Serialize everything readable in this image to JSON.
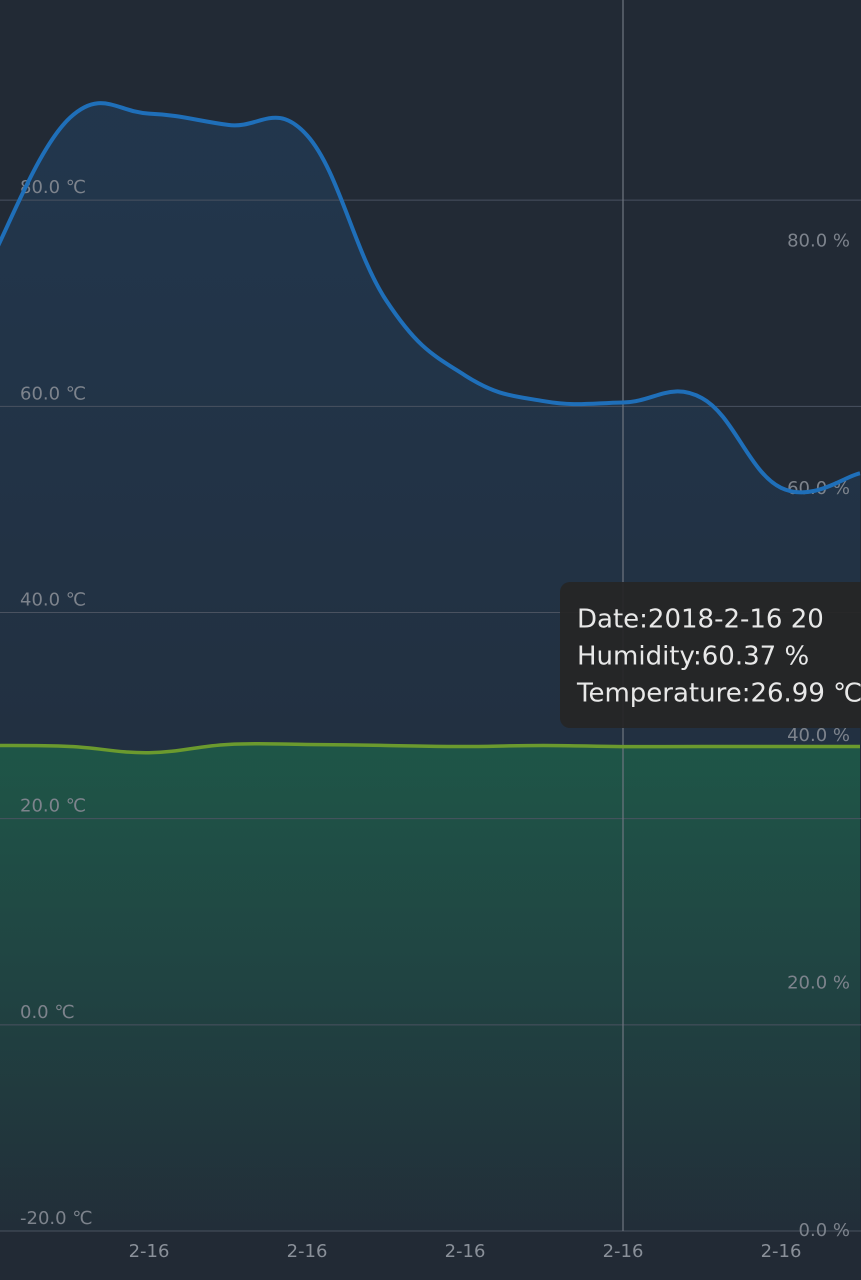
{
  "chart_data": {
    "type": "line",
    "categories": [
      null,
      null,
      "2-16",
      null,
      "2-16",
      null,
      "2-16",
      null,
      "2-16",
      null,
      "2-16",
      null
    ],
    "series": [
      {
        "color": "#1f6fb9",
        "values": [
          74.2,
          88.0,
          88.4,
          87.3,
          86.3,
          70.3,
          63.0,
          60.5,
          60.37,
          60.8,
          52.1,
          53.5
        ]
      },
      {
        "color": "#6b9a2e",
        "values": [
          27.1,
          27.0,
          26.4,
          27.2,
          27.2,
          27.1,
          27.0,
          27.1,
          26.99,
          27.0,
          27.0,
          27.0
        ]
      }
    ],
    "ylim": [
      -20,
      100
    ],
    "yticks": [
      {
        "value": -20,
        "label": "-20.0 ℃"
      },
      {
        "value": 0,
        "label": "0.0 ℃"
      },
      {
        "value": 20,
        "label": "20.0 ℃"
      },
      {
        "value": 40,
        "label": "40.0 ℃"
      },
      {
        "value": 60,
        "label": "60.0 ℃"
      },
      {
        "value": 80,
        "label": "80.0 ℃"
      }
    ],
    "y2lim": [
      0,
      100
    ],
    "y2ticks": [
      {
        "value": 0,
        "label": "0.0 %"
      },
      {
        "value": 20,
        "label": "20.0 %"
      },
      {
        "value": 40,
        "label": "40.0 %"
      },
      {
        "value": 60,
        "label": "60.0 %"
      },
      {
        "value": 80,
        "label": "80.0 %"
      }
    ],
    "grid": true,
    "highlight_index": 8,
    "tooltip": [
      "Date:2018-2-16 20",
      "Humidity:60.37 %",
      "Temperature:26.99 ℃"
    ]
  }
}
